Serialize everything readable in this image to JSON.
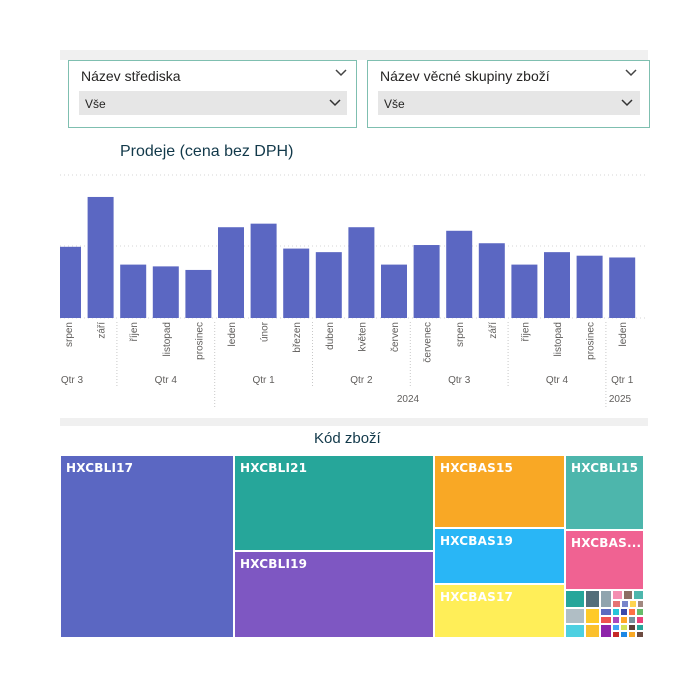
{
  "slicers": {
    "center": {
      "title": "Název střediska",
      "value": "Vše"
    },
    "group": {
      "title": "Název věcné skupiny zboží",
      "value": "Vše"
    }
  },
  "sales_chart": {
    "title": "Prodeje (cena bez DPH)",
    "year_2024": "2024",
    "year_2025": "2025"
  },
  "treemap": {
    "title": "Kód zboží",
    "items": [
      {
        "label": "HXCBLI17",
        "color": "#5b67c2"
      },
      {
        "label": "HXCBLI21",
        "color": "#26a69a"
      },
      {
        "label": "HXCBLI19",
        "color": "#7e57c2"
      },
      {
        "label": "HXCBAS15",
        "color": "#f9a825"
      },
      {
        "label": "HXCBAS19",
        "color": "#29b6f6"
      },
      {
        "label": "HXCBAS17",
        "color": "#ffee58"
      },
      {
        "label": "HXCBLI15",
        "color": "#4db6ac"
      },
      {
        "label": "HXCBAS...",
        "color": "#f06292"
      }
    ]
  },
  "chart_data": {
    "type": "bar",
    "title": "Prodeje (cena bez DPH)",
    "xlabel": "",
    "ylabel": "",
    "ylim": [
      0,
      100
    ],
    "grid": true,
    "bar_color": "#5b67c2",
    "categories": [
      "srpen",
      "září",
      "říjen",
      "listopad",
      "prosinec",
      "leden",
      "únor",
      "březen",
      "duben",
      "květen",
      "červen",
      "červenec",
      "srpen",
      "září",
      "říjen",
      "listopad",
      "prosinec",
      "leden"
    ],
    "values": [
      40,
      68,
      30,
      29,
      27,
      51,
      53,
      39,
      37,
      51,
      30,
      41,
      49,
      42,
      30,
      37,
      35,
      34
    ],
    "quarters": [
      {
        "label": "Qtr 3",
        "start": 0,
        "end": 1
      },
      {
        "label": "Qtr 4",
        "start": 2,
        "end": 4
      },
      {
        "label": "Qtr 1",
        "start": 5,
        "end": 7
      },
      {
        "label": "Qtr 2",
        "start": 8,
        "end": 10
      },
      {
        "label": "Qtr 3",
        "start": 11,
        "end": 13
      },
      {
        "label": "Qtr 4",
        "start": 14,
        "end": 16
      },
      {
        "label": "Qtr 1",
        "start": 17,
        "end": 17
      }
    ],
    "years": [
      {
        "label": "2024",
        "start": 5,
        "end": 16
      },
      {
        "label": "2025",
        "start": 17,
        "end": 17
      }
    ]
  }
}
